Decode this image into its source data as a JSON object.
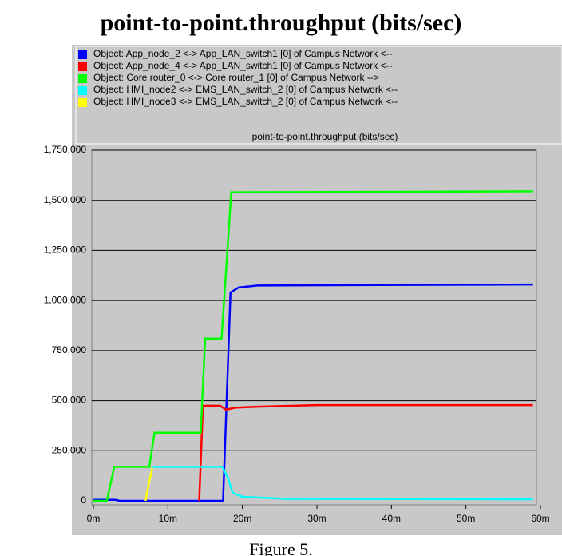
{
  "chart_data": {
    "type": "line",
    "title": "point-to-point.throughput (bits/sec)",
    "subtitle": "point-to-point.throughput (bits/sec)",
    "caption": "Figure 5.",
    "xlim": [
      0,
      60
    ],
    "xticks": [
      {
        "value": 0,
        "label": "0m"
      },
      {
        "value": 10,
        "label": "10m"
      },
      {
        "value": 20,
        "label": "20m"
      },
      {
        "value": 30,
        "label": "30m"
      },
      {
        "value": 40,
        "label": "40m"
      },
      {
        "value": 50,
        "label": "50m"
      },
      {
        "value": 60,
        "label": "60m"
      }
    ],
    "ylim": [
      0,
      1750000
    ],
    "yticks": [
      {
        "value": 0,
        "label": "0"
      },
      {
        "value": 250000,
        "label": "250,000"
      },
      {
        "value": 500000,
        "label": "500,000"
      },
      {
        "value": 750000,
        "label": "750,000"
      },
      {
        "value": 1000000,
        "label": "1,000,000"
      },
      {
        "value": 1250000,
        "label": "1,250,000"
      },
      {
        "value": 1500000,
        "label": "1,500,000"
      },
      {
        "value": 1750000,
        "label": "1,750,000"
      }
    ],
    "grid": true,
    "legend": "top",
    "series": [
      {
        "name": "Object: App_node_2 <-> App_LAN_switch1 [0] of Campus Network <--",
        "color": "#0000ff",
        "x": [
          0,
          3,
          3.5,
          17.4,
          18.4,
          19.5,
          22,
          59
        ],
        "values": [
          5000,
          5000,
          0,
          0,
          1040000,
          1065000,
          1075000,
          1080000
        ]
      },
      {
        "name": "Object: App_node_4 <-> App_LAN_switch1 [0] of Campus Network <--",
        "color": "#ff0000",
        "x": [
          14.2,
          14.7,
          17,
          17.8,
          19,
          22,
          30,
          59
        ],
        "values": [
          0,
          475000,
          475000,
          455000,
          465000,
          470000,
          478000,
          478000
        ]
      },
      {
        "name": "Object: Core router_0 <-> Core router_1 [0] of Campus Network -->",
        "color": "#00ff00",
        "x": [
          0,
          1.8,
          2.8,
          7.5,
          8.2,
          14.4,
          15,
          17.2,
          18.5,
          59
        ],
        "values": [
          0,
          0,
          170000,
          170000,
          340000,
          340000,
          810000,
          810000,
          1540000,
          1545000
        ]
      },
      {
        "name": "Object: HMI_node2 <-> EMS_LAN_switch_2 [0] of Campus Network <--",
        "color": "#00ffff",
        "x": [
          7.8,
          17.3,
          18,
          18.7,
          20,
          26,
          59
        ],
        "values": [
          170000,
          170000,
          120000,
          40000,
          20000,
          10000,
          8000
        ]
      },
      {
        "name": "Object: HMI_node3 <-> EMS_LAN_switch_2 [0] of Campus Network <--",
        "color": "#ffff00",
        "x": [
          7,
          7.4,
          7.9
        ],
        "values": [
          0,
          80000,
          165000
        ]
      }
    ]
  }
}
